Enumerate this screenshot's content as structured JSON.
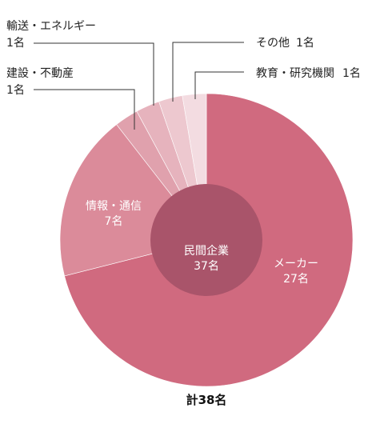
{
  "chart_data": {
    "type": "pie",
    "subtype": "donut",
    "center": {
      "line1": "民間企業",
      "line2": "37名"
    },
    "total": "計38名",
    "slices": [
      {
        "label": "メーカー",
        "value": 27,
        "value_label": "27名",
        "color": "#d06a7f"
      },
      {
        "label": "情報・通信",
        "value": 7,
        "value_label": "7名",
        "color": "#db8b9a"
      },
      {
        "label": "建設・不動産",
        "value": 1,
        "value_label": "1名",
        "color": "#e0a1ad"
      },
      {
        "label": "輸送・エネルギー",
        "value": 1,
        "value_label": "1名",
        "color": "#e6b3bd"
      },
      {
        "label": "その他",
        "value": 1,
        "value_label": "1名",
        "color": "#edc8cf"
      },
      {
        "label": "教育・研究機関",
        "value": 1,
        "value_label": "1名",
        "color": "#f3dce1"
      }
    ],
    "center_color": "#a9546a"
  }
}
